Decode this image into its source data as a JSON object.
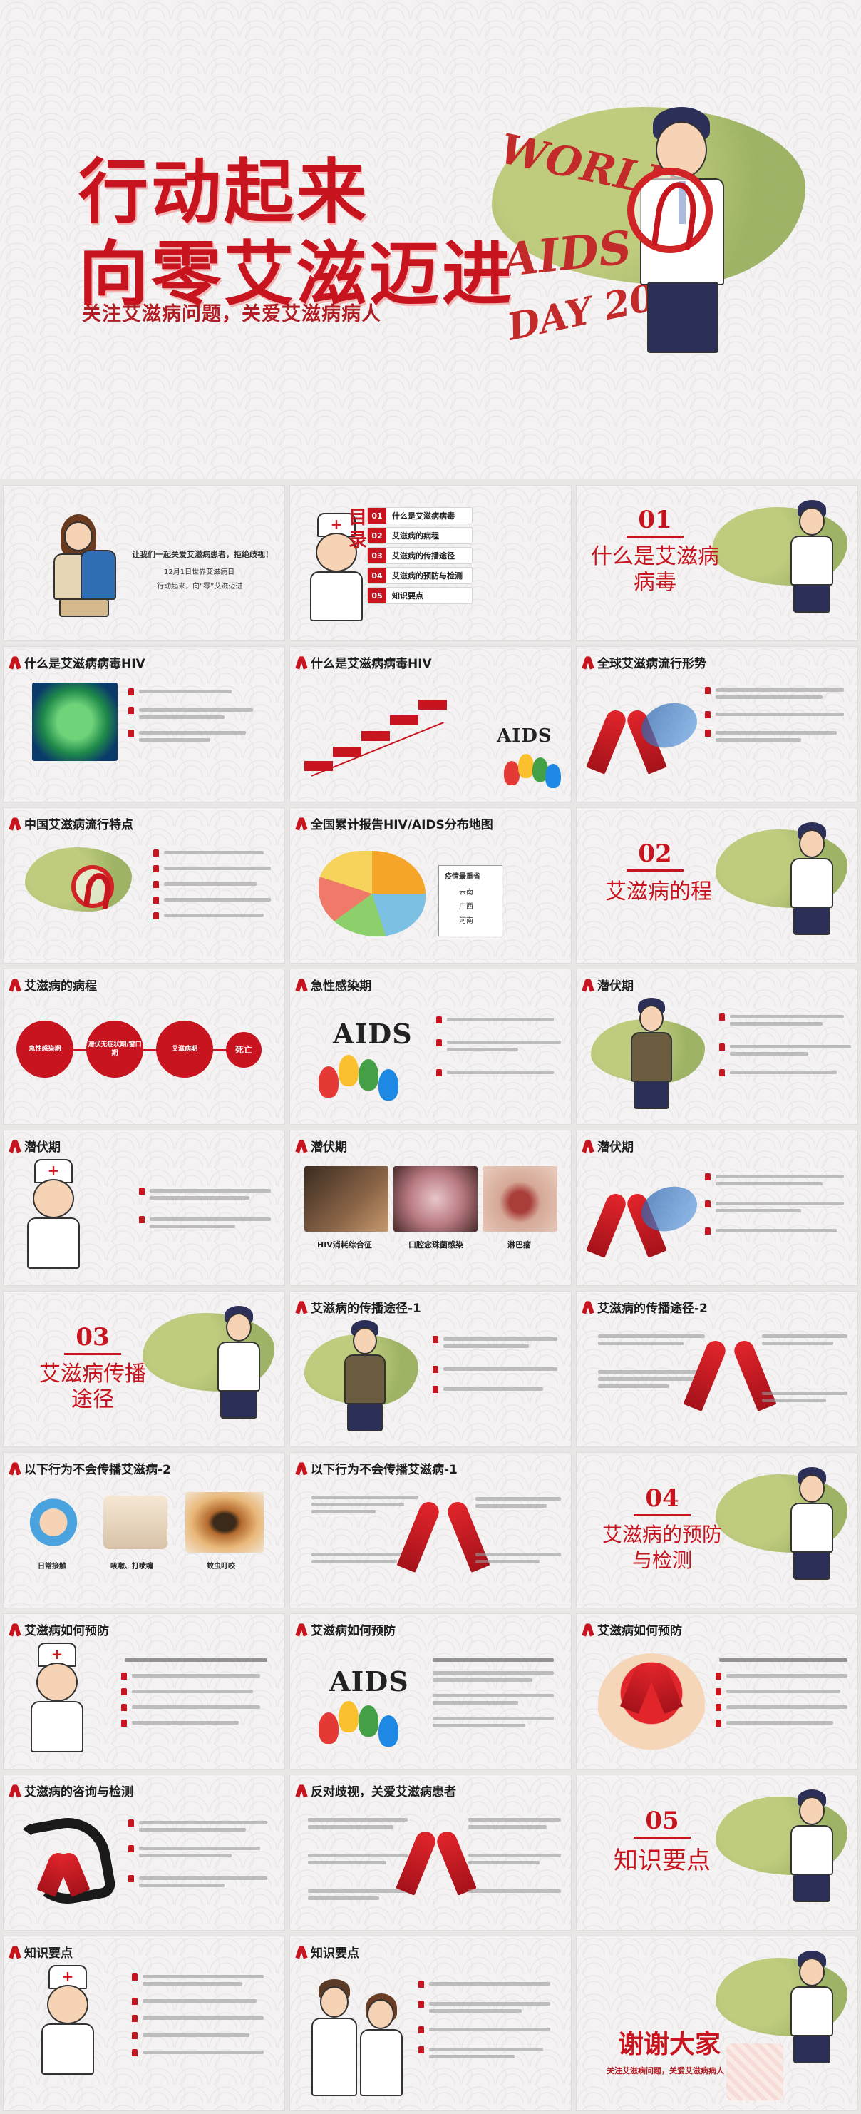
{
  "hero": {
    "title_line1": "行动起来",
    "title_line2": "向零艾滋迈进",
    "subtitle": "关注艾滋病问题，关爱艾滋病病人",
    "badge_line1": "WORLD",
    "badge_line2": "AIDS",
    "badge_line3": "DAY 2018"
  },
  "colors": {
    "accent": "#c8141e",
    "background": "#f4f2f2"
  },
  "slides": {
    "s1": {
      "line1": "让我们一起关爱艾滋病患者，拒绝歧视！",
      "line2": "12月1日世界艾滋病日",
      "line3": "行动起来，向“零”艾滋迈进"
    },
    "s2": {
      "title_a": "目",
      "title_b": "录",
      "items": [
        {
          "num": "01",
          "label": "什么是艾滋病病毒"
        },
        {
          "num": "02",
          "label": "艾滋病的病程"
        },
        {
          "num": "03",
          "label": "艾滋病的传播途径"
        },
        {
          "num": "04",
          "label": "艾滋病的预防与检测"
        },
        {
          "num": "05",
          "label": "知识要点"
        }
      ]
    },
    "s3": {
      "num": "01",
      "title_l1": "什么是艾滋病",
      "title_l2": "病毒"
    },
    "s4": {
      "title": "什么是艾滋病病毒HIV"
    },
    "s5": {
      "title": "什么是艾滋病病毒HIV",
      "aids": "AIDS"
    },
    "s6": {
      "title": "全球艾滋病流行形势"
    },
    "s7": {
      "title": "中国艾滋病流行特点"
    },
    "s8": {
      "title": "全国累计报告HIV/AIDS分布地图",
      "box_title": "疫情最重省",
      "provinces": [
        "云南",
        "广西",
        "河南"
      ]
    },
    "s9": {
      "num": "02",
      "title": "艾滋病的程"
    },
    "s10": {
      "title": "艾滋病的病程",
      "stages": [
        "急性感染期",
        "潜伏无症状期/窗口期",
        "艾滋病期",
        "死亡"
      ]
    },
    "s11": {
      "title": "急性感染期",
      "aids": "AIDS"
    },
    "s12": {
      "title": "潜伏期"
    },
    "s13": {
      "title": "潜伏期"
    },
    "s14": {
      "title": "潜伏期",
      "captions": [
        "HIV消耗综合征",
        "口腔念珠菌感染",
        "淋巴瘤"
      ]
    },
    "s15": {
      "title": "潜伏期"
    },
    "s16": {
      "num": "03",
      "title_l1": "艾滋病传播",
      "title_l2": "途径"
    },
    "s17": {
      "title": "艾滋病的传播途径-1"
    },
    "s18": {
      "title": "艾滋病的传播途径-2"
    },
    "s19": {
      "title": "以下行为不会传播艾滋病-2",
      "captions": [
        "日常接触",
        "咳嗽、打喷嚏",
        "蚊虫叮咬"
      ]
    },
    "s20": {
      "title": "以下行为不会传播艾滋病-1"
    },
    "s21": {
      "num": "04",
      "title_l1": "艾滋病的预防",
      "title_l2": "与检测"
    },
    "s22": {
      "title": "艾滋病如何预防"
    },
    "s23": {
      "title": "艾滋病如何预防",
      "aids": "AIDS"
    },
    "s24": {
      "title": "艾滋病如何预防"
    },
    "s25": {
      "title": "艾滋病的咨询与检测"
    },
    "s26": {
      "title": "反对歧视，关爱艾滋病患者"
    },
    "s27": {
      "num": "05",
      "title": "知识要点"
    },
    "s28": {
      "title": "知识要点"
    },
    "s29": {
      "title": "知识要点"
    },
    "s30": {
      "thanks": "谢谢大家",
      "sub": "关注艾滋病问题，关爱艾滋病病人"
    }
  }
}
